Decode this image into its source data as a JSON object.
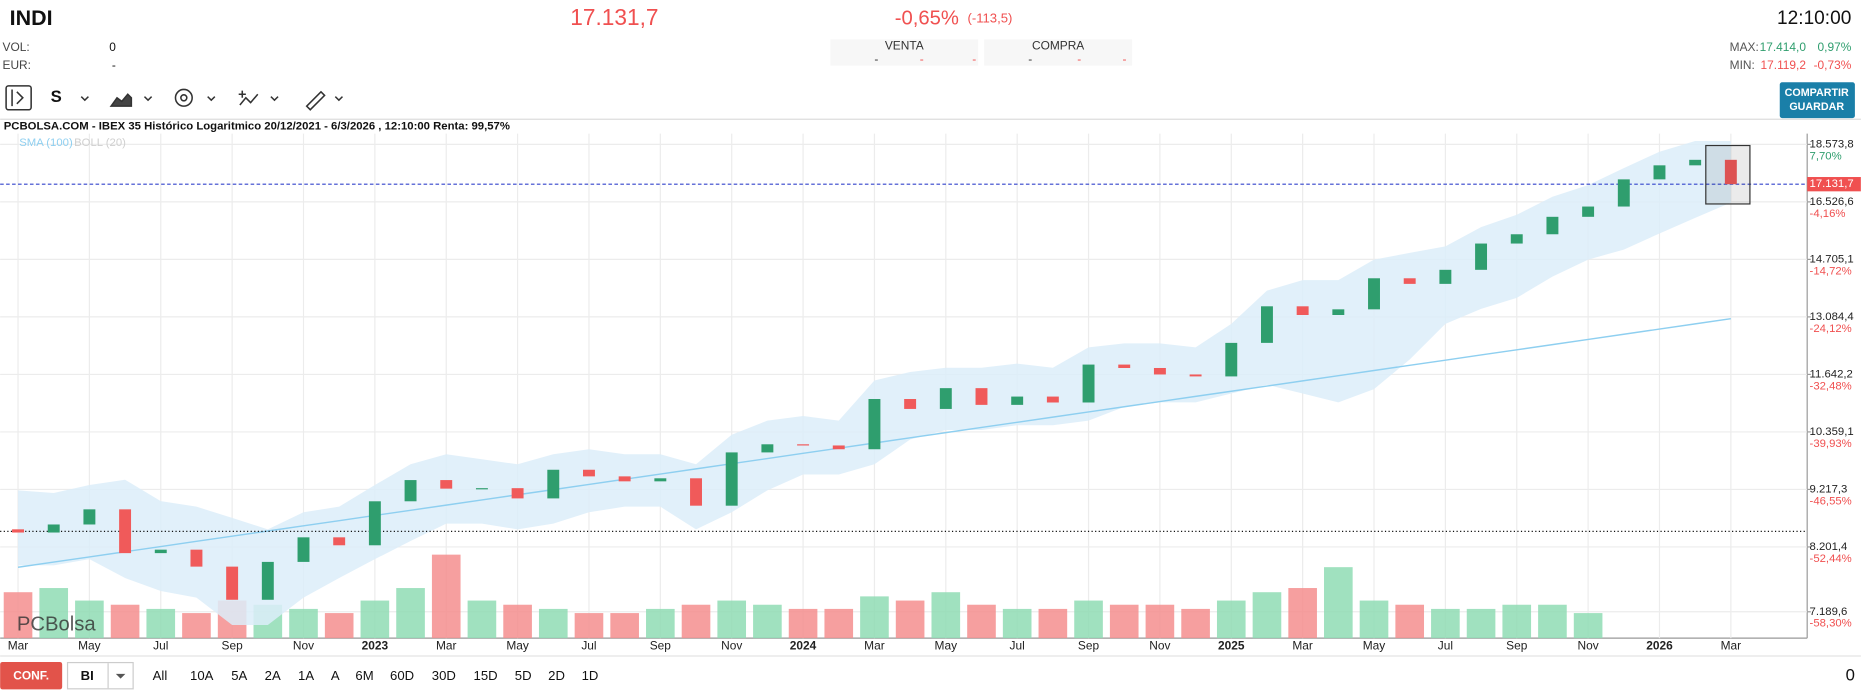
{
  "header": {
    "symbol": "INDI",
    "price": "17.131,7",
    "change": "-0,65%",
    "change_abs": "(-113,5)",
    "time": "12:10:00",
    "vol_label": "VOL:",
    "vol": "0",
    "eur_label": "EUR:",
    "eur": "-",
    "venta": "VENTA",
    "venta_cells": [
      "-",
      "-",
      "-"
    ],
    "compra": "COMPRA",
    "compra_cells": [
      "-",
      "-",
      "-"
    ],
    "max_label": "MAX:",
    "max": "17.414,0",
    "max_change": "0,97%",
    "min_label": "MIN:",
    "min": "17.119,2",
    "min_change": "-0,73%"
  },
  "toolbar": {
    "series_type": "S",
    "share_button": "COMPARTIR",
    "save_button": "GUARDAR"
  },
  "footer": {
    "config": "CONF.",
    "mode": "BI",
    "periods": [
      "All",
      "10A",
      "5A",
      "2A",
      "1A",
      "A",
      "6M",
      "60D",
      "30D",
      "15D",
      "5D",
      "2D",
      "1D"
    ],
    "counter": "0"
  },
  "chart_data": {
    "type": "candlestick",
    "title": "PCBOLSA.COM - IBEX 35 Histórico Logaritmico 20/12/2021 - 6/3/2026 , 12:10:00 Renta: 99,57%",
    "legend": [
      {
        "name": "SMA (100)",
        "color": "#8ecff0"
      },
      {
        "name": "BOLL (20)",
        "color": "#cfcfcf"
      }
    ],
    "watermark": "PCBolsa",
    "categories": [
      "Mar",
      null,
      "May",
      null,
      "Jul",
      null,
      "Sep",
      null,
      "Nov",
      null,
      "2023",
      null,
      "Mar",
      null,
      "May",
      null,
      "Jul",
      null,
      "Sep",
      null,
      "Nov",
      null,
      "2024",
      null,
      "Mar",
      null,
      "May",
      null,
      "Jul",
      null,
      "Sep",
      null,
      "Nov",
      null,
      "2025",
      null,
      "Mar",
      null,
      "May",
      null,
      "Jul",
      null,
      "Sep",
      null,
      "Nov",
      null,
      "2026",
      null,
      "Mar"
    ],
    "opens": [
      8500,
      8445,
      8584,
      8852,
      8099,
      8156,
      7880,
      7367,
      7956,
      8363,
      8229,
      8998,
      9394,
      9232,
      9241,
      9051,
      9593,
      9465,
      9370,
      9428,
      8918,
      9937,
      10102,
      10078,
      10001,
      11075,
      10854,
      11322,
      10944,
      11130,
      10997,
      11877,
      11795,
      11641,
      11595,
      12412,
      13369,
      13135,
      13287,
      14152,
      13992,
      14397,
      15186,
      15475,
      16033,
      16371,
      17300,
      17800,
      18000
    ],
    "closes": [
      8445,
      8584,
      8852,
      8099,
      8156,
      7880,
      7367,
      7956,
      8363,
      8229,
      8998,
      9394,
      9232,
      9241,
      9051,
      9593,
      9465,
      9370,
      9428,
      8918,
      9937,
      10102,
      10078,
      10001,
      11075,
      10854,
      11322,
      10944,
      11130,
      10997,
      11877,
      11795,
      11641,
      11595,
      12412,
      13369,
      13135,
      13287,
      14152,
      13992,
      14397,
      15186,
      15475,
      16033,
      16371,
      17300,
      17800,
      18000,
      17131.7
    ],
    "up_color": "#2f9e6e",
    "down_color": "#f05a5a",
    "sma": [
      7870,
      7953,
      8037,
      8122,
      8208,
      8295,
      8383,
      8471,
      8561,
      8651,
      8743,
      8835,
      8928,
      9023,
      9118,
      9214,
      9312,
      9410,
      9510,
      9610,
      9712,
      9814,
      9918,
      10023,
      10129,
      10236,
      10344,
      10453,
      10564,
      10675,
      10788,
      10902,
      11017,
      11134,
      11251,
      11370,
      11490,
      11612,
      11735,
      11859,
      11984,
      12111,
      12239,
      12368,
      12499,
      12631,
      12765,
      12900,
      13036
    ],
    "boll_upper": [
      9200,
      9150,
      9300,
      9400,
      9000,
      8900,
      8700,
      8500,
      8800,
      8900,
      9300,
      9700,
      9900,
      9800,
      9700,
      9900,
      10000,
      9900,
      9900,
      9700,
      10300,
      10600,
      10700,
      10600,
      11500,
      11700,
      11800,
      11800,
      11900,
      11800,
      12300,
      12400,
      12400,
      12300,
      12900,
      13800,
      14100,
      14100,
      14700,
      14900,
      15100,
      15700,
      16100,
      16700,
      17100,
      17700,
      18300,
      18700,
      18700
    ],
    "boll_lower": [
      7900,
      7900,
      8000,
      7700,
      7500,
      7400,
      7000,
      7000,
      7400,
      7700,
      8000,
      8300,
      8600,
      8600,
      8500,
      8600,
      8800,
      8900,
      8900,
      8500,
      8800,
      9200,
      9500,
      9500,
      9700,
      10200,
      10400,
      10400,
      10500,
      10500,
      10600,
      10900,
      11000,
      11000,
      11200,
      11400,
      11200,
      11000,
      11300,
      12000,
      12900,
      13300,
      13600,
      14200,
      14700,
      15000,
      15500,
      16000,
      16500
    ],
    "volume": [
      55,
      60,
      45,
      40,
      35,
      30,
      45,
      40,
      35,
      30,
      45,
      60,
      100,
      45,
      40,
      35,
      30,
      30,
      35,
      40,
      45,
      40,
      35,
      35,
      50,
      45,
      55,
      40,
      35,
      35,
      45,
      40,
      40,
      35,
      45,
      55,
      60,
      85,
      45,
      40,
      35,
      35,
      40,
      40,
      30,
      null,
      null,
      null,
      null
    ],
    "vlim": [
      0,
      100
    ],
    "ylim": [
      6815,
      18985
    ],
    "log_scale": true,
    "grid": true,
    "yticks": [
      {
        "value": 18573.8,
        "label": "18.573,8"
      },
      {
        "value": 16526.6,
        "label": "16.526,6"
      },
      {
        "value": 14705.1,
        "label": "14.705,1"
      },
      {
        "value": 13084.4,
        "label": "13.084,4"
      },
      {
        "value": 11642.2,
        "label": "11.642,2"
      },
      {
        "value": 10359.1,
        "label": "10.359,1"
      },
      {
        "value": 9217.3,
        "label": "9.217,3"
      },
      {
        "value": 8201.4,
        "label": "8.201,4"
      },
      {
        "value": 7189.6,
        "label": "7.189,6"
      }
    ],
    "ytick_changes": [
      "7,70%",
      "-4,16%",
      "-14,72%",
      "-24,12%",
      "-32,48%",
      "-39,93%",
      "-46,55%",
      "-52,44%",
      "-58,30%"
    ],
    "current_price": {
      "value": 17131.7,
      "label": "17.131,7"
    },
    "reference_line": 8465
  }
}
